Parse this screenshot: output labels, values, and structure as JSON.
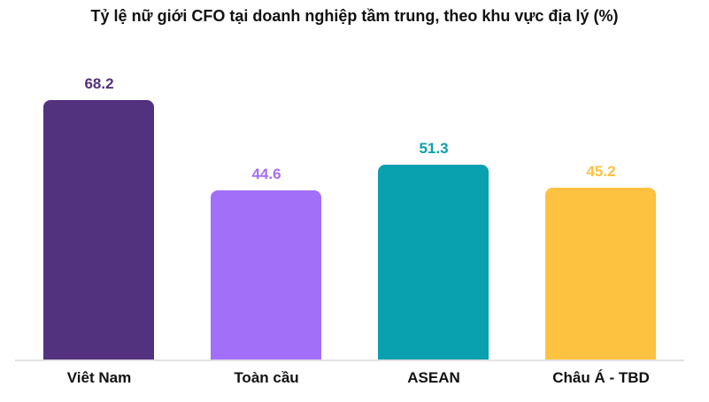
{
  "chart_data": {
    "type": "bar",
    "title": "Tỷ lệ nữ giới CFO tại doanh nghiệp tầm trung, theo khu vực địa lý (%)",
    "categories": [
      "Viêt Nam",
      "Toàn cầu",
      "ASEAN",
      "Châu Á - TBD"
    ],
    "values": [
      68.2,
      44.6,
      51.3,
      45.2
    ],
    "value_labels": [
      "68.2",
      "44.6",
      "51.3",
      "45.2"
    ],
    "bar_colors": [
      "#52317E",
      "#A26FF9",
      "#09A0AF",
      "#FDC240"
    ],
    "value_label_colors": [
      "#52317E",
      "#A26FF9",
      "#09A0AF",
      "#FDC240"
    ],
    "xlabel": "",
    "ylabel": "",
    "ylim": [
      0,
      75
    ],
    "grid": false,
    "legend": false,
    "title_color": "#111111",
    "category_label_color": "#111111",
    "axis_line_color": "#E2E2E2",
    "background_color": "#FFFFFF"
  }
}
